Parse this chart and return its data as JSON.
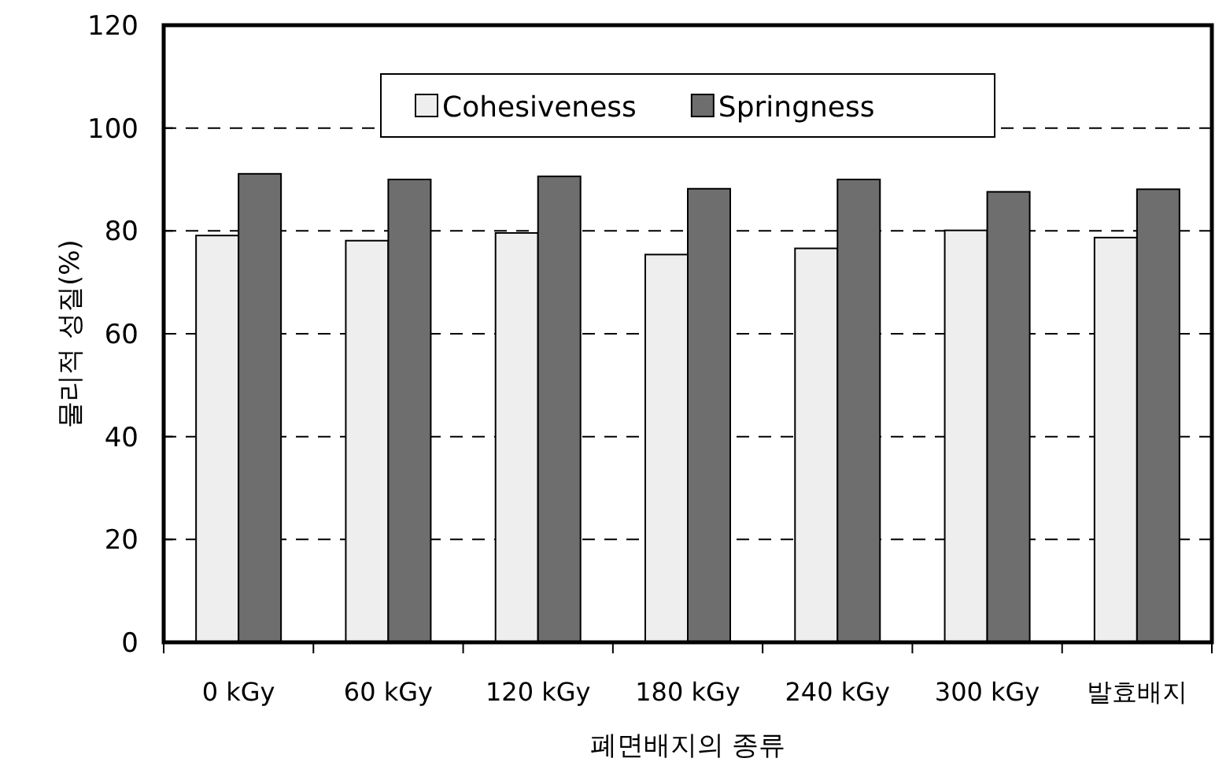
{
  "chart_data": {
    "type": "bar",
    "xlabel": "폐면배지의 종류",
    "ylabel": "물리적 성질(%)",
    "categories": [
      "0 kGy",
      "60 kGy",
      "120 kGy",
      "180 kGy",
      "240 kGy",
      "300 kGy",
      "발효배지"
    ],
    "series": [
      {
        "name": "Cohesiveness",
        "color": "#eeeeee",
        "values": [
          79.1,
          78.1,
          79.6,
          75.4,
          76.6,
          80.1,
          78.7
        ]
      },
      {
        "name": "Springness",
        "color": "#6e6e6e",
        "values": [
          91.1,
          90.0,
          90.6,
          88.2,
          90.0,
          87.6,
          88.1
        ]
      }
    ],
    "ylim": [
      0,
      120
    ],
    "yticks": [
      0,
      20,
      40,
      60,
      80,
      100,
      120
    ],
    "grid": "y",
    "legend": "top"
  }
}
